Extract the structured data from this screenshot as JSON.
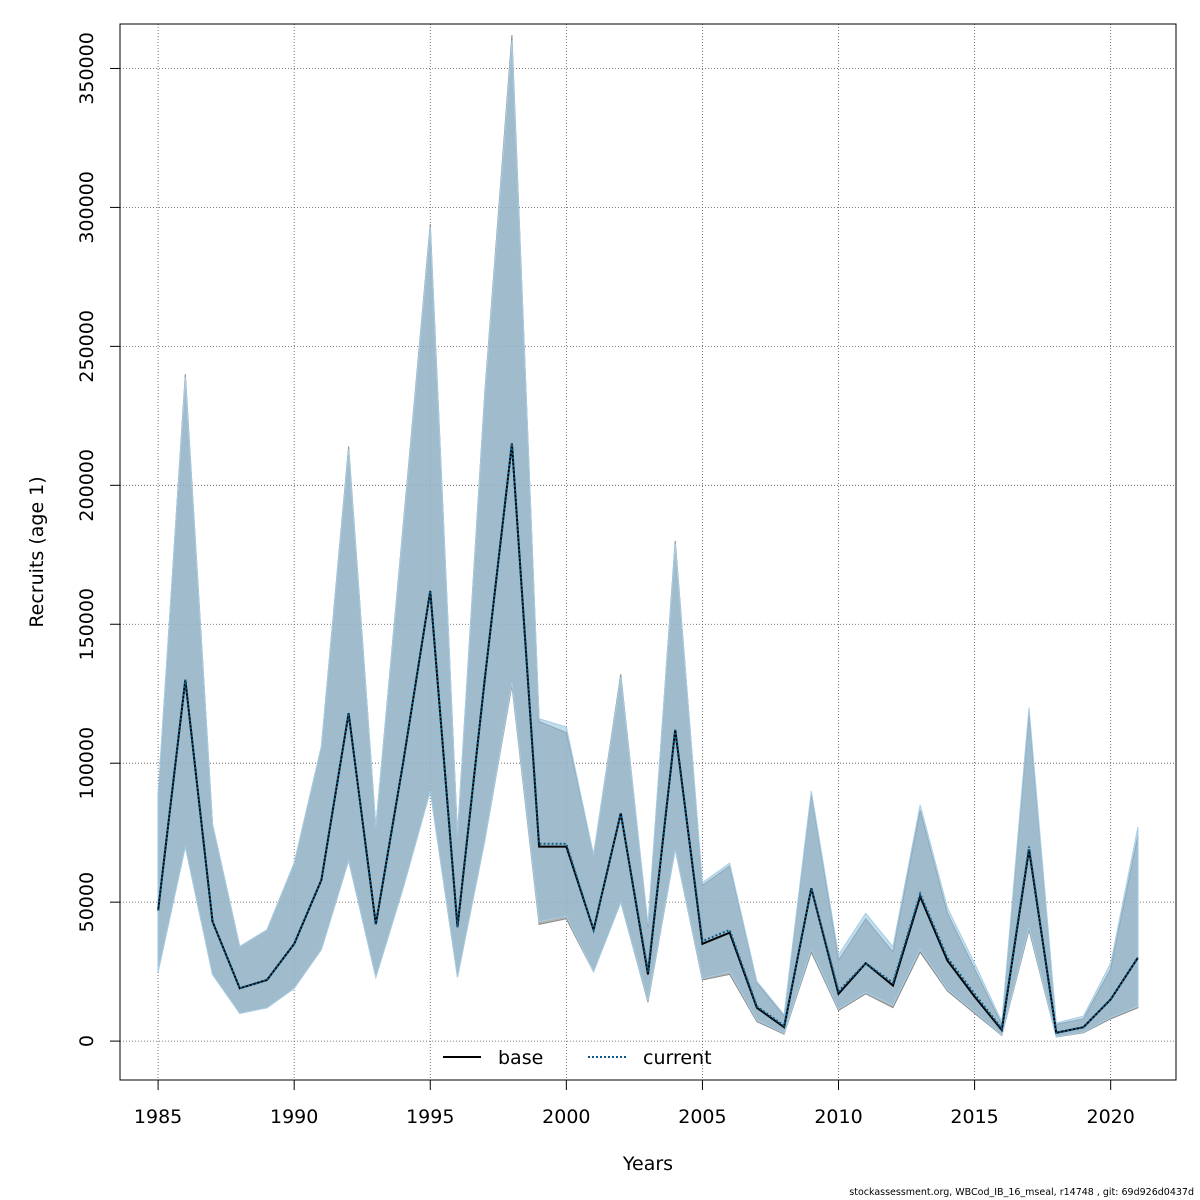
{
  "chart_data": {
    "type": "line",
    "xlabel": "Years",
    "ylabel": "Recruits (age 1)",
    "xlim": [
      1983.6,
      1987.0
    ],
    "ylim": [
      -14000,
      366000
    ],
    "xticks": [
      1985,
      1990,
      1995,
      2000,
      2005,
      2010,
      2015,
      2020
    ],
    "yticks": [
      0,
      50000,
      100000,
      150000,
      200000,
      250000,
      300000,
      350000
    ],
    "grid": true,
    "legend_position": "bottom-center",
    "x": [
      1985,
      1986,
      1987,
      1988,
      1989,
      1990,
      1991,
      1992,
      1993,
      1994,
      1995,
      1996,
      1997,
      1998,
      1999,
      2000,
      2001,
      2002,
      2003,
      2004,
      2005,
      2006,
      2007,
      2008,
      2009,
      2010,
      2011,
      2012,
      2013,
      2014,
      2015,
      2016,
      2017,
      2018,
      2019,
      2020,
      2021
    ],
    "series": [
      {
        "name": "base",
        "style": "solid",
        "color": "#000000",
        "values": [
          47000,
          130000,
          43000,
          19000,
          22000,
          35000,
          58000,
          118000,
          42000,
          100000,
          162000,
          41000,
          130000,
          215000,
          70000,
          70000,
          40000,
          82000,
          24000,
          112000,
          35000,
          39000,
          12000,
          5000,
          55000,
          17000,
          28000,
          20000,
          52000,
          29000,
          16000,
          4000,
          69000,
          3000,
          5000,
          15000,
          30000
        ],
        "lower": [
          25000,
          70000,
          24000,
          10000,
          12000,
          19000,
          33000,
          65000,
          23000,
          55000,
          90000,
          23000,
          72000,
          128000,
          42000,
          44000,
          25000,
          50000,
          14000,
          69000,
          22000,
          24000,
          7000,
          2500,
          32000,
          11000,
          17000,
          12000,
          32000,
          18000,
          10000,
          2000,
          40000,
          1500,
          3000,
          8000,
          12000
        ],
        "upper": [
          88000,
          240000,
          78000,
          34000,
          40000,
          64000,
          106000,
          214000,
          77000,
          185000,
          294000,
          74000,
          233000,
          362000,
          115000,
          111000,
          67000,
          132000,
          41000,
          180000,
          56000,
          63000,
          21000,
          9000,
          89000,
          29000,
          44000,
          32000,
          83000,
          46000,
          26000,
          6000,
          118000,
          6000,
          8000,
          26000,
          74000
        ],
        "band_color": "#9a9a9a"
      },
      {
        "name": "current",
        "style": "dotted",
        "color": "#0a5a88",
        "values": [
          47000,
          130000,
          43000,
          19000,
          22000,
          35000,
          58000,
          118000,
          42000,
          100000,
          162000,
          41000,
          130000,
          215000,
          71000,
          71000,
          40000,
          82000,
          25000,
          112000,
          36000,
          40000,
          12500,
          5500,
          55000,
          18000,
          28000,
          21000,
          53000,
          30000,
          17000,
          4500,
          70000,
          3000,
          5000,
          15000,
          30000
        ],
        "lower": [
          25000,
          70000,
          24000,
          10000,
          12000,
          19000,
          33000,
          65000,
          23000,
          55000,
          90000,
          23000,
          72000,
          129000,
          43000,
          45000,
          25000,
          50000,
          14500,
          69000,
          22500,
          25000,
          7500,
          2800,
          33000,
          11500,
          17500,
          13000,
          33000,
          18500,
          10500,
          2200,
          41000,
          1600,
          3200,
          8500,
          12500
        ],
        "upper": [
          89000,
          239000,
          78000,
          34000,
          40000,
          64000,
          106000,
          213000,
          77000,
          184000,
          293000,
          74000,
          232000,
          360000,
          116000,
          113000,
          67000,
          131000,
          42000,
          179000,
          57000,
          64000,
          21500,
          9500,
          90000,
          31000,
          46000,
          34000,
          85000,
          48000,
          28000,
          7000,
          120000,
          6500,
          9000,
          28000,
          77000
        ],
        "band_color": "#8fc2e0"
      }
    ]
  },
  "footer_text": "stockassessment.org, WBCod_IB_16_mseal, r14748 , git: 69d926d0437d"
}
